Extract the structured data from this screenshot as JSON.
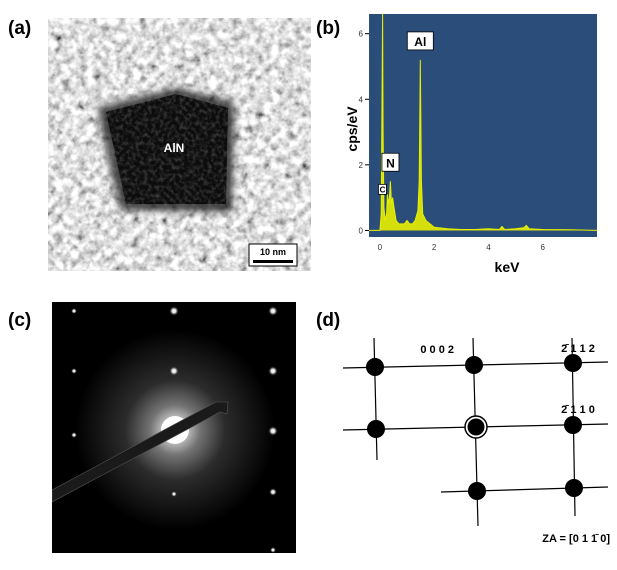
{
  "figure": {
    "panels": [
      {
        "label": "(a)",
        "type": "tem-image",
        "particle_label": "AlN",
        "scale_bar": "10 nm"
      },
      {
        "label": "(b)",
        "type": "eds-spectrum"
      },
      {
        "label": "(c)",
        "type": "diffraction-pattern"
      },
      {
        "label": "(d)",
        "type": "indexed-schematic",
        "spot_labels": [
          "0 0 0 2",
          "2̄ 1 1 2",
          "2̄ 1 1 0"
        ],
        "zone_axis": "ZA = [0 1 1̄ 0]"
      }
    ]
  },
  "chart_data": {
    "type": "line",
    "xlabel": "keV",
    "ylabel": "cps/eV",
    "xlim": [
      -0.4,
      8.0
    ],
    "ylim": [
      -0.2,
      6.6
    ],
    "x_ticks": [
      0,
      2,
      4,
      6
    ],
    "y_ticks": [
      0,
      2,
      4,
      6
    ],
    "background_color": "#2b4d7a",
    "line_color": "#e8f000",
    "peaks": [
      {
        "label": "N",
        "x": 0.39,
        "y": 1.5
      },
      {
        "label": "C",
        "x": 0.28,
        "y": 1.1
      },
      {
        "label": "Al",
        "x": 1.49,
        "y": 5.2
      }
    ],
    "series": [
      {
        "x": [
          -0.4,
          0.0,
          0.05,
          0.1,
          0.12,
          0.15,
          0.2,
          0.25,
          0.28,
          0.31,
          0.35,
          0.39,
          0.43,
          0.47,
          0.52,
          0.6,
          0.7,
          0.8,
          0.9,
          1.0,
          1.1,
          1.2,
          1.3,
          1.4,
          1.45,
          1.49,
          1.53,
          1.58,
          1.7,
          2.0,
          2.5,
          3.0,
          3.5,
          4.0,
          4.4,
          4.5,
          4.6,
          5.0,
          5.3,
          5.4,
          5.5,
          6.0,
          7.0,
          8.0
        ],
        "y": [
          0.0,
          0.0,
          0.5,
          6.6,
          3.0,
          0.7,
          0.3,
          0.5,
          1.1,
          0.8,
          1.0,
          1.5,
          0.8,
          1.0,
          0.7,
          0.3,
          0.2,
          0.2,
          0.2,
          0.3,
          0.2,
          0.2,
          0.3,
          0.6,
          1.5,
          5.2,
          1.5,
          0.5,
          0.3,
          0.1,
          0.05,
          0.03,
          0.03,
          0.05,
          0.03,
          0.12,
          0.03,
          0.05,
          0.08,
          0.15,
          0.05,
          0.03,
          0.02,
          0.0
        ]
      }
    ]
  }
}
